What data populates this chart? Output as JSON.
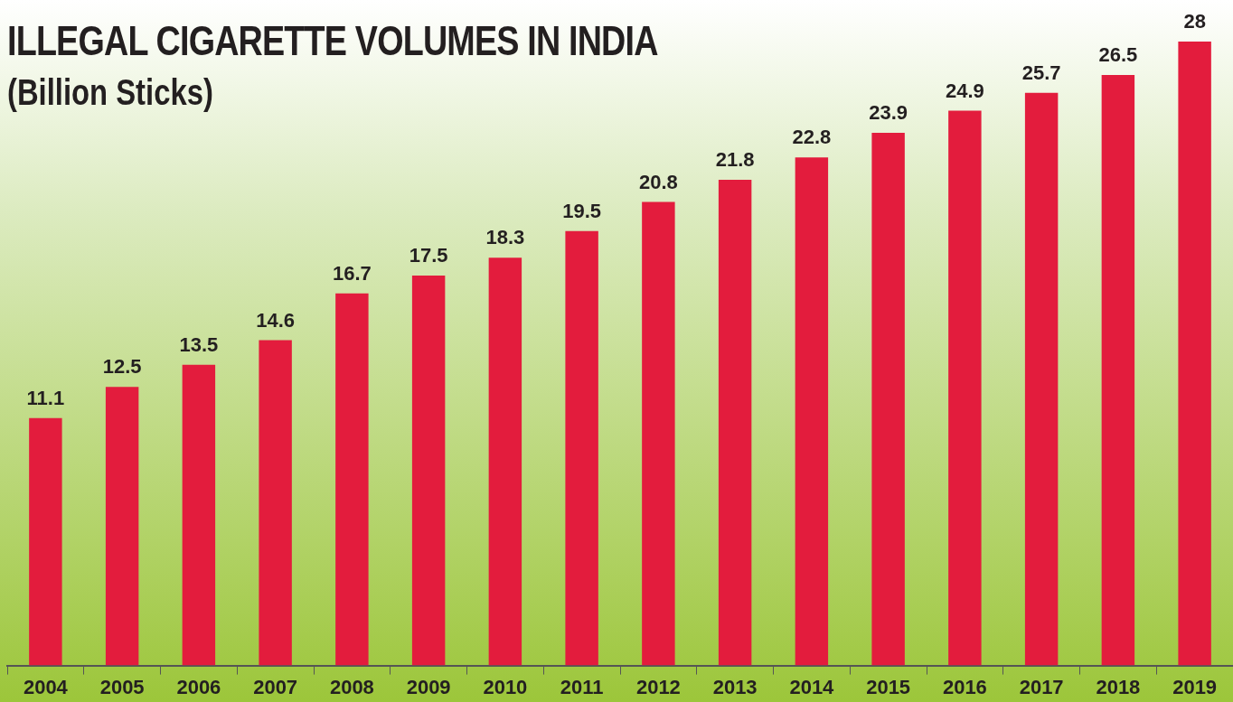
{
  "chart_data": {
    "type": "bar",
    "title": "ILLEGAL CIGARETTE VOLUMES IN INDIA",
    "subtitle": "(Billion Sticks)",
    "categories": [
      "2004",
      "2005",
      "2006",
      "2007",
      "2008",
      "2009",
      "2010",
      "2011",
      "2012",
      "2013",
      "2014",
      "2015",
      "2016",
      "2017",
      "2018",
      "2019"
    ],
    "values": [
      11.1,
      12.5,
      13.5,
      14.6,
      16.7,
      17.5,
      18.3,
      19.5,
      20.8,
      21.8,
      22.8,
      23.9,
      24.9,
      25.7,
      26.5,
      28
    ],
    "color": "#e31c3d",
    "relative": false,
    "data_labels": true,
    "grid": false,
    "legend": false
  }
}
